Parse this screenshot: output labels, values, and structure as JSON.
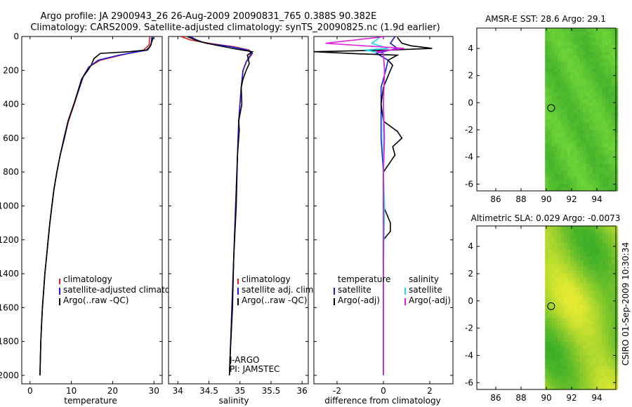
{
  "header": {
    "title_line1": "Argo profile: JA 2900943_26 26-Aug-2009 20090831_765 0.388S 90.382E",
    "title_line2": "Climatology: CARS2009. Satellite-adjusted climatology: synTS_20090825.nc (1.9d earlier)"
  },
  "side_label": "CSIRO 01-Sep-2009 10:30:34",
  "colors": {
    "climatology": "#e02020",
    "satellite": "#1a1adf",
    "argo": "#000000",
    "sal_satellite": "#22d8e8",
    "sal_argo": "#e020e0"
  },
  "chart_data": [
    {
      "type": "line",
      "id": "temperature",
      "xlabel": "temperature",
      "ylabel": "",
      "xlim": [
        -2,
        32
      ],
      "ylim": [
        2050,
        0
      ],
      "xticks": [
        "0",
        "10",
        "20",
        "30"
      ],
      "yticks": [
        "0",
        "200",
        "400",
        "600",
        "800",
        "1000",
        "1200",
        "1400",
        "1600",
        "1800",
        "2000"
      ],
      "legend": [
        "climatology",
        "satellite-adjusted climatology",
        "Argo(..raw -QC)"
      ],
      "series": [
        {
          "name": "climatology",
          "color": "#e02020",
          "points": [
            [
              29,
              0
            ],
            [
              28.8,
              50
            ],
            [
              27.5,
              80
            ],
            [
              22,
              110
            ],
            [
              17,
              140
            ],
            [
              14.2,
              180
            ],
            [
              13,
              230
            ],
            [
              12,
              300
            ],
            [
              10.7,
              400
            ],
            [
              9.3,
              500
            ],
            [
              8.3,
              600
            ],
            [
              7.3,
              700
            ],
            [
              6.5,
              800
            ],
            [
              5.8,
              900
            ],
            [
              5.3,
              1000
            ],
            [
              4.8,
              1100
            ],
            [
              4.4,
              1200
            ],
            [
              4.0,
              1300
            ],
            [
              3.6,
              1400
            ],
            [
              3.3,
              1500
            ],
            [
              3.0,
              1600
            ],
            [
              2.8,
              1700
            ],
            [
              2.6,
              1800
            ],
            [
              2.5,
              1900
            ],
            [
              2.4,
              2000
            ]
          ]
        },
        {
          "name": "satellite-adjusted climatology",
          "color": "#1a1adf",
          "points": [
            [
              29.5,
              0
            ],
            [
              29.3,
              50
            ],
            [
              28.5,
              80
            ],
            [
              21.5,
              110
            ],
            [
              16.5,
              140
            ],
            [
              14.3,
              180
            ],
            [
              13,
              230
            ],
            [
              12,
              300
            ],
            [
              10.6,
              400
            ],
            [
              9.2,
              500
            ],
            [
              8.2,
              600
            ],
            [
              7.3,
              700
            ],
            [
              6.5,
              800
            ],
            [
              5.8,
              900
            ],
            [
              5.3,
              1000
            ],
            [
              4.8,
              1100
            ],
            [
              4.4,
              1200
            ],
            [
              4.0,
              1300
            ],
            [
              3.6,
              1400
            ],
            [
              3.3,
              1500
            ],
            [
              3.0,
              1600
            ],
            [
              2.8,
              1700
            ],
            [
              2.6,
              1800
            ],
            [
              2.5,
              1900
            ],
            [
              2.4,
              2000
            ]
          ]
        },
        {
          "name": "Argo(..raw -QC)",
          "color": "#000000",
          "points": [
            [
              29.8,
              5
            ],
            [
              29.5,
              30
            ],
            [
              29,
              60
            ],
            [
              28.2,
              80
            ],
            [
              24,
              90
            ],
            [
              17,
              100
            ],
            [
              15.5,
              130
            ],
            [
              14.8,
              170
            ],
            [
              14,
              200
            ],
            [
              12.5,
              250
            ],
            [
              11.5,
              330
            ],
            [
              10.6,
              400
            ],
            [
              9.2,
              500
            ],
            [
              8.3,
              600
            ],
            [
              7.3,
              700
            ],
            [
              6.5,
              800
            ],
            [
              5.8,
              900
            ],
            [
              5.3,
              1000
            ],
            [
              4.8,
              1100
            ],
            [
              4.4,
              1200
            ],
            [
              4.0,
              1300
            ],
            [
              3.6,
              1400
            ],
            [
              3.3,
              1500
            ],
            [
              3.0,
              1600
            ],
            [
              2.8,
              1700
            ],
            [
              2.6,
              1800
            ],
            [
              2.5,
              1900
            ],
            [
              2.4,
              2000
            ]
          ]
        }
      ]
    },
    {
      "type": "line",
      "id": "salinity",
      "xlabel": "salinity",
      "xlim": [
        33.85,
        36.1
      ],
      "ylim": [
        2050,
        0
      ],
      "xticks": [
        "34",
        "34.5",
        "35",
        "35.5",
        "36"
      ],
      "legend": [
        "climatology",
        "satellite adj. clim.",
        "Argo(..raw -QC)"
      ],
      "annotations": [
        "J-ARGO",
        "PI: JAMSTEC"
      ],
      "series": [
        {
          "name": "climatology",
          "color": "#e02020",
          "points": [
            [
              34.05,
              0
            ],
            [
              34.2,
              20
            ],
            [
              34.5,
              40
            ],
            [
              34.9,
              60
            ],
            [
              35.15,
              80
            ],
            [
              35.18,
              100
            ],
            [
              35.1,
              150
            ],
            [
              35.05,
              200
            ],
            [
              35.02,
              300
            ],
            [
              35.0,
              400
            ],
            [
              34.98,
              500
            ],
            [
              34.96,
              700
            ],
            [
              34.93,
              1000
            ],
            [
              34.9,
              1300
            ],
            [
              34.87,
              1600
            ],
            [
              34.83,
              2000
            ]
          ]
        },
        {
          "name": "satellite adj. clim.",
          "color": "#1a1adf",
          "points": [
            [
              34.2,
              0
            ],
            [
              34.3,
              20
            ],
            [
              34.45,
              40
            ],
            [
              34.85,
              60
            ],
            [
              35.12,
              80
            ],
            [
              35.2,
              100
            ],
            [
              35.1,
              150
            ],
            [
              35.05,
              200
            ],
            [
              35.02,
              300
            ],
            [
              35.0,
              400
            ],
            [
              34.98,
              500
            ],
            [
              34.96,
              700
            ],
            [
              34.93,
              1000
            ],
            [
              34.9,
              1300
            ],
            [
              34.87,
              1600
            ],
            [
              34.83,
              2000
            ]
          ]
        },
        {
          "name": "Argo(..raw -QC)",
          "color": "#000000",
          "points": [
            [
              34.15,
              0
            ],
            [
              34.35,
              30
            ],
            [
              34.6,
              50
            ],
            [
              34.95,
              75
            ],
            [
              35.2,
              90
            ],
            [
              35.12,
              110
            ],
            [
              35.15,
              160
            ],
            [
              35.1,
              200
            ],
            [
              35.05,
              250
            ],
            [
              35.02,
              300
            ],
            [
              35.03,
              400
            ],
            [
              34.98,
              500
            ],
            [
              34.99,
              550
            ],
            [
              34.96,
              700
            ],
            [
              34.95,
              850
            ],
            [
              34.94,
              1000
            ],
            [
              34.9,
              1300
            ],
            [
              34.88,
              1600
            ],
            [
              34.84,
              1900
            ],
            [
              34.83,
              2000
            ]
          ]
        }
      ]
    },
    {
      "type": "line",
      "id": "difference",
      "xlabel": "difference from climatology",
      "xlim": [
        -3.0,
        3.0
      ],
      "ylim": [
        2050,
        0
      ],
      "xticks": [
        "-2",
        "0",
        "2"
      ],
      "legend_left_title": "temperature",
      "legend_right_title": "salinity",
      "legend_left": [
        "satellite",
        "Argo(-adj)"
      ],
      "legend_right": [
        "satellite",
        "Argo(-adj)"
      ],
      "series": [
        {
          "name": "temperature satellite",
          "color": "#1a1adf",
          "points": [
            [
              0.5,
              0
            ],
            [
              0.3,
              40
            ],
            [
              0.6,
              70
            ],
            [
              -0.3,
              100
            ],
            [
              0.2,
              140
            ],
            [
              0.1,
              200
            ],
            [
              -0.1,
              300
            ],
            [
              -0.1,
              400
            ],
            [
              -0.1,
              600
            ],
            [
              0,
              800
            ],
            [
              0,
              1200
            ],
            [
              0,
              2000
            ]
          ]
        },
        {
          "name": "temperature Argo(-adj)",
          "color": "#000000",
          "points": [
            [
              0.6,
              5
            ],
            [
              0.8,
              40
            ],
            [
              1.2,
              55
            ],
            [
              2.1,
              70
            ],
            [
              0.3,
              80
            ],
            [
              -3.0,
              90
            ],
            [
              -1.5,
              100
            ],
            [
              0.6,
              110
            ],
            [
              0.2,
              140
            ],
            [
              0.4,
              170
            ],
            [
              0.3,
              200
            ],
            [
              0.0,
              300
            ],
            [
              -0.1,
              400
            ],
            [
              0.0,
              500
            ],
            [
              0.6,
              560
            ],
            [
              0.8,
              600
            ],
            [
              0.4,
              650
            ],
            [
              0.5,
              700
            ],
            [
              0.0,
              800
            ],
            [
              0.0,
              1000
            ],
            [
              0.3,
              1100
            ],
            [
              0.3,
              1150
            ],
            [
              0.0,
              1200
            ],
            [
              0.0,
              2000
            ]
          ]
        },
        {
          "name": "salinity satellite",
          "color": "#22d8e8",
          "points": [
            [
              -0.1,
              0
            ],
            [
              -0.5,
              40
            ],
            [
              0.2,
              70
            ],
            [
              -0.8,
              80
            ],
            [
              0.0,
              100
            ],
            [
              0.05,
              200
            ],
            [
              0.0,
              400
            ],
            [
              0.0,
              600
            ],
            [
              0.0,
              800
            ],
            [
              0.05,
              1000
            ],
            [
              0.0,
              1400
            ],
            [
              0.0,
              2000
            ]
          ]
        },
        {
          "name": "salinity Argo(-adj)",
          "color": "#e020e0",
          "points": [
            [
              0.1,
              0
            ],
            [
              -2.5,
              40
            ],
            [
              0.9,
              70
            ],
            [
              -0.3,
              90
            ],
            [
              0.0,
              100
            ],
            [
              0.05,
              200
            ],
            [
              0.0,
              400
            ],
            [
              0.05,
              600
            ],
            [
              0.0,
              800
            ],
            [
              0.0,
              1000
            ],
            [
              0.0,
              2000
            ]
          ]
        }
      ]
    },
    {
      "type": "heatmap",
      "id": "sst_map",
      "title": "AMSR-E SST: 28.6 Argo: 29.1",
      "xticks": [
        "86",
        "88",
        "90",
        "92",
        "94"
      ],
      "yticks": [
        "4",
        "2",
        "0",
        "-2",
        "-4",
        "-6"
      ],
      "xlim": [
        84.5,
        95.5
      ],
      "ylim": [
        -6.5,
        5.5
      ],
      "data_lon_range": [
        89.9,
        95.5
      ],
      "float_position": [
        90.38,
        -0.39
      ]
    },
    {
      "type": "heatmap",
      "id": "sla_map",
      "title": "Altimetric SLA: 0.029 Argo: -0.0073",
      "xticks": [
        "86",
        "88",
        "90",
        "92",
        "94"
      ],
      "yticks": [
        "4",
        "2",
        "0",
        "-2",
        "-4",
        "-6"
      ],
      "xlim": [
        84.5,
        95.5
      ],
      "ylim": [
        -6.5,
        5.5
      ],
      "data_lon_range": [
        89.9,
        95.5
      ],
      "float_position": [
        90.38,
        -0.39
      ]
    }
  ]
}
